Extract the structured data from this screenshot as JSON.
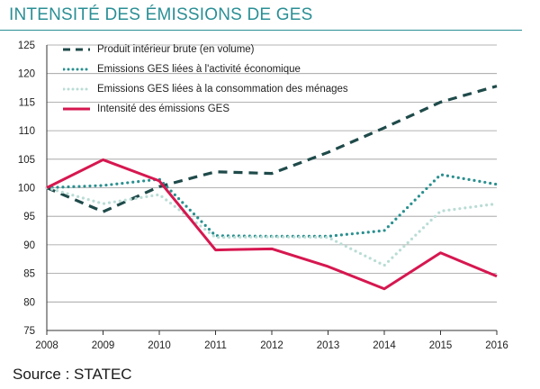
{
  "title": "INTENSITÉ DES ÉMISSIONS DE GES",
  "source": "Source : STATEC",
  "chart_data": {
    "type": "line",
    "x": [
      "2008",
      "2009",
      "2010",
      "2011",
      "2012",
      "2013",
      "2014",
      "2015",
      "2016"
    ],
    "ylim": [
      75,
      125
    ],
    "yticks": [
      75,
      80,
      85,
      90,
      95,
      100,
      105,
      110,
      115,
      120,
      125
    ],
    "grid": true,
    "legend_position": "top-left",
    "series": [
      {
        "name": "Produit intérieur brute (en volume)",
        "style": "dash",
        "color": "#1f4a4a",
        "values": [
          100.0,
          95.8,
          100.2,
          102.8,
          102.5,
          106.2,
          110.5,
          115.0,
          117.8
        ]
      },
      {
        "name": "Emissions GES liées à l'activité économique",
        "style": "dot",
        "color": "#2a8f8f",
        "values": [
          100.0,
          100.4,
          101.5,
          91.6,
          91.5,
          91.5,
          92.5,
          102.3,
          100.6
        ]
      },
      {
        "name": "Emissions GES liées à la consommation des ménages",
        "style": "dot",
        "color": "#b9dcd5",
        "values": [
          100.0,
          97.2,
          98.8,
          91.3,
          91.4,
          91.3,
          86.4,
          95.9,
          97.2
        ]
      },
      {
        "name": "Intensité des émissions GES",
        "style": "solid",
        "color": "#d6174f",
        "values": [
          100.0,
          104.9,
          101.2,
          89.1,
          89.3,
          86.2,
          82.3,
          88.6,
          84.5
        ]
      }
    ]
  }
}
